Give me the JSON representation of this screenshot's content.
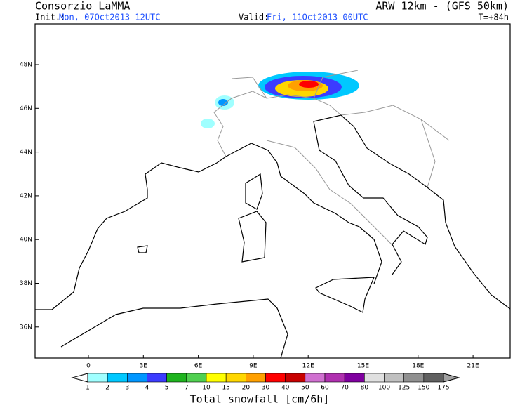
{
  "header": {
    "left_title": "Consorzio LaMMA",
    "right_title": "ARW 12km  - (GFS 50km)",
    "init_label": "Init.:",
    "init_value": "Mon, 07Oct2013 12UTC",
    "valid_label": "Valid:",
    "valid_value": "Fri, 11Oct2013 00UTC",
    "lead_time": "T=+84h"
  },
  "map": {
    "lat_labels": [
      "48N",
      "46N",
      "44N",
      "42N",
      "40N",
      "38N",
      "36N"
    ],
    "lon_labels": [
      "0",
      "3E",
      "6E",
      "9E",
      "12E",
      "15E",
      "18E",
      "21E"
    ]
  },
  "legend": {
    "title": "Total snowfall [cm/6h]",
    "levels": [
      1,
      2,
      3,
      4,
      5,
      7,
      10,
      15,
      20,
      30,
      40,
      50,
      60,
      70,
      80,
      100,
      125,
      150,
      175
    ],
    "colors": [
      "#ffffff",
      "#a0ffff",
      "#00c8ff",
      "#0096ff",
      "#3c3cff",
      "#1eb41e",
      "#50d050",
      "#ffff00",
      "#ffd700",
      "#ffa000",
      "#ff0000",
      "#c80000",
      "#d070d0",
      "#b030b0",
      "#8000a0",
      "#e0e0e0",
      "#c0c0c0",
      "#909090",
      "#606060",
      "#a0a0a0"
    ]
  }
}
